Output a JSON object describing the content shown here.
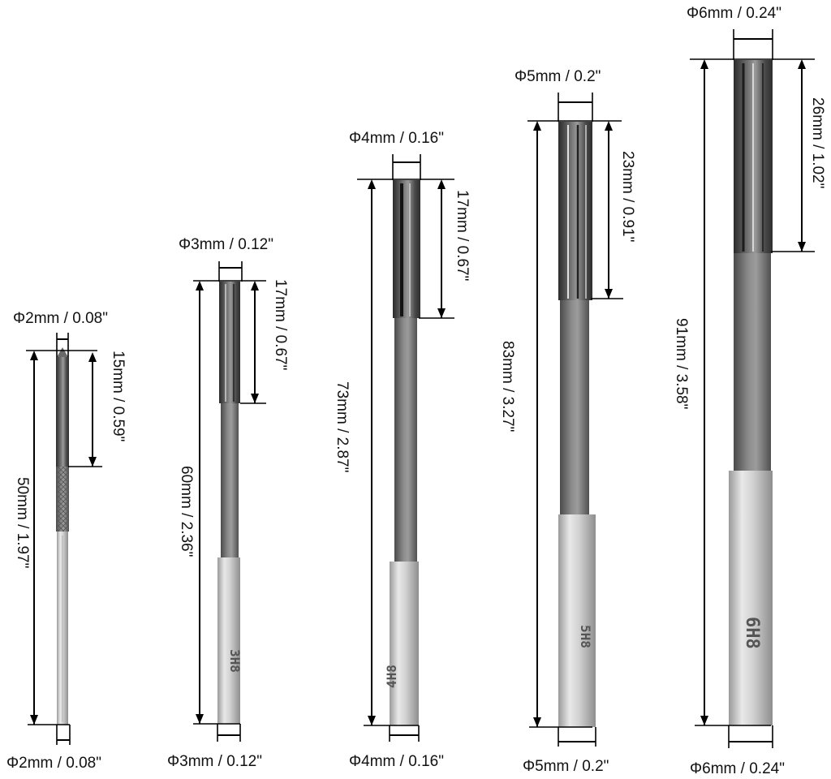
{
  "reamers": [
    {
      "id": "2mm",
      "top_diameter": "Φ2mm / 0.08\"",
      "flute_length": "15mm / 0.59\"",
      "total_length": "50mm / 1.97\"",
      "bottom_diameter": "Φ2mm / 0.08\"",
      "shank_marking": ""
    },
    {
      "id": "3mm",
      "top_diameter": "Φ3mm / 0.12\"",
      "flute_length": "17mm / 0.67\"",
      "total_length": "60mm / 2.36\"",
      "bottom_diameter": "Φ3mm / 0.12\"",
      "shank_marking": "3H8"
    },
    {
      "id": "4mm",
      "top_diameter": "Φ4mm / 0.16\"",
      "flute_length": "17mm / 0.67\"",
      "total_length": "73mm / 2.87\"",
      "bottom_diameter": "Φ4mm / 0.16\"",
      "shank_marking": "4H8"
    },
    {
      "id": "5mm",
      "top_diameter": "Φ5mm / 0.2\"",
      "flute_length": "23mm / 0.91\"",
      "total_length": "83mm / 3.27\"",
      "bottom_diameter": "Φ5mm / 0.2\"",
      "shank_marking": "5H8"
    },
    {
      "id": "6mm",
      "top_diameter": "Φ6mm / 0.24\"",
      "flute_length": "26mm / 1.02\"",
      "total_length": "91mm / 3.58\"",
      "bottom_diameter": "Φ6mm / 0.24\"",
      "shank_marking": "6H8"
    }
  ],
  "colors": {
    "background": "#ffffff",
    "dimension_lines": "#000000",
    "label_text": "#111111",
    "fluted_steel_dark": "#3a3a3a",
    "fluted_steel_light": "#8a8a8a",
    "shank_steel": "#c9c9c9"
  }
}
